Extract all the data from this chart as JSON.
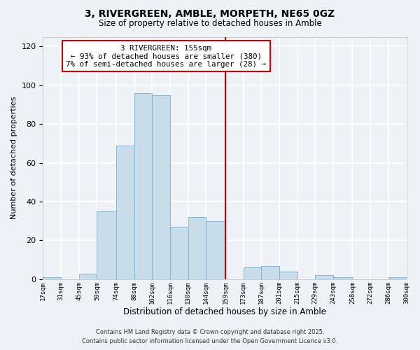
{
  "title": "3, RIVERGREEN, AMBLE, MORPETH, NE65 0GZ",
  "subtitle": "Size of property relative to detached houses in Amble",
  "xlabel": "Distribution of detached houses by size in Amble",
  "ylabel": "Number of detached properties",
  "bar_color": "#c8dcea",
  "bar_edge_color": "#8ab4cc",
  "background_color": "#eef2f7",
  "grid_color": "#ffffff",
  "bins": [
    17,
    31,
    45,
    59,
    74,
    88,
    102,
    116,
    130,
    144,
    159,
    173,
    187,
    201,
    215,
    229,
    243,
    258,
    272,
    286,
    300
  ],
  "bin_labels": [
    "17sqm",
    "31sqm",
    "45sqm",
    "59sqm",
    "74sqm",
    "88sqm",
    "102sqm",
    "116sqm",
    "130sqm",
    "144sqm",
    "159sqm",
    "173sqm",
    "187sqm",
    "201sqm",
    "215sqm",
    "229sqm",
    "243sqm",
    "258sqm",
    "272sqm",
    "286sqm",
    "300sqm"
  ],
  "counts": [
    1,
    0,
    3,
    35,
    69,
    96,
    95,
    27,
    32,
    30,
    0,
    6,
    7,
    4,
    0,
    2,
    1,
    0,
    0,
    1
  ],
  "vline_x": 159,
  "vline_color": "#cc0000",
  "annotation_title": "3 RIVERGREEN: 155sqm",
  "annotation_line1": "← 93% of detached houses are smaller (380)",
  "annotation_line2": "7% of semi-detached houses are larger (28) →",
  "annotation_box_color": "#ffffff",
  "annotation_box_edge": "#cc0000",
  "ylim": [
    0,
    125
  ],
  "yticks": [
    0,
    20,
    40,
    60,
    80,
    100,
    120
  ],
  "footer_line1": "Contains HM Land Registry data © Crown copyright and database right 2025.",
  "footer_line2": "Contains public sector information licensed under the Open Government Licence v3.0."
}
